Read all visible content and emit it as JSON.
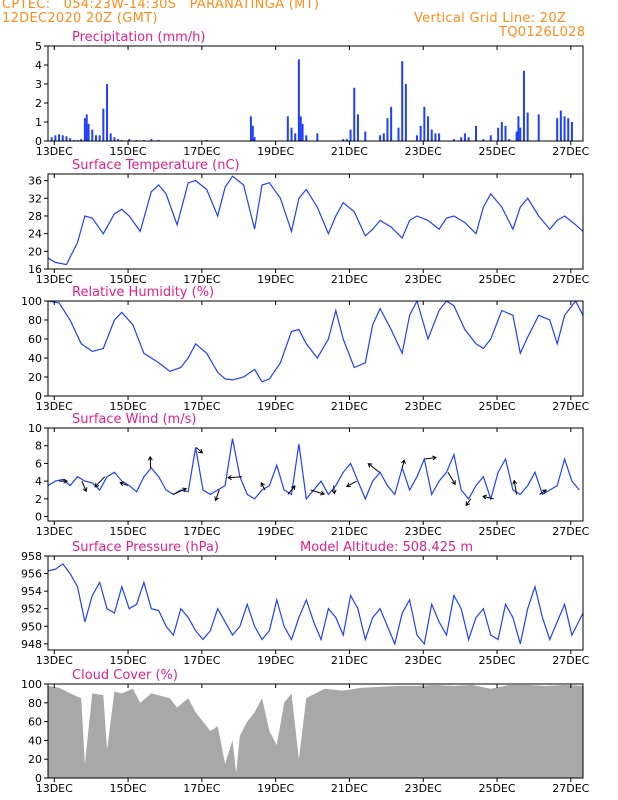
{
  "header": {
    "line1": "CPTEC:   054:23W-14:30S   PARANATINGA (MT)",
    "line2": "12DEC2020 20Z (GMT)",
    "right1": "Vertical Grid Line: 20Z",
    "right2": "TQ0126L028"
  },
  "colors": {
    "header": "#ff8c1a",
    "panel_title": "#e0208c",
    "series": "#2040ff",
    "cloud": "#a8a8a8"
  },
  "x_ticks": [
    "13DEC",
    "15DEC",
    "17DEC",
    "19DEC",
    "21DEC",
    "23DEC",
    "25DEC",
    "27DEC"
  ],
  "chart_data": [
    {
      "type": "bar",
      "title": "Precipitation (mm/h)",
      "ylim": [
        0,
        5
      ],
      "yticks": [
        "0",
        "1",
        "2",
        "3",
        "4",
        "5"
      ],
      "grid": false,
      "x_range_days": [
        0,
        14.5
      ],
      "series": [
        {
          "x": [
            0.1,
            0.2,
            0.3,
            0.4,
            0.5,
            0.6,
            0.7,
            0.8,
            0.9,
            1.0,
            1.05,
            1.1,
            1.2,
            1.3,
            1.4,
            1.5,
            1.6,
            1.7,
            1.8,
            1.9,
            2.0,
            2.2,
            2.4,
            2.6,
            2.8,
            3.0,
            4.3,
            5.5,
            5.55,
            5.6,
            6.5,
            6.6,
            6.7,
            6.8,
            6.85,
            6.9,
            7.0,
            7.3,
            8.0,
            8.1,
            8.2,
            8.3,
            8.4,
            8.6,
            9.0,
            9.1,
            9.2,
            9.3,
            9.5,
            9.6,
            9.7,
            10.0,
            10.1,
            10.2,
            10.3,
            10.4,
            10.5,
            10.6,
            11.0,
            11.2,
            11.3,
            11.4,
            11.6,
            11.8,
            12.0,
            12.2,
            12.3,
            12.4,
            12.5,
            12.7,
            12.75,
            12.8,
            12.9,
            13.0,
            13.3,
            13.8,
            13.9,
            14.0,
            14.1,
            14.2
          ],
          "values": [
            0.2,
            0.3,
            0.35,
            0.3,
            0.25,
            0.15,
            0.05,
            0.05,
            0.1,
            1.2,
            1.4,
            0.9,
            0.6,
            0.3,
            0.3,
            1.7,
            3.0,
            0.4,
            0.2,
            0.1,
            0.05,
            0.1,
            0.05,
            0.05,
            0.1,
            0.05,
            0.05,
            1.3,
            0.8,
            0.2,
            1.3,
            0.7,
            0.4,
            4.3,
            1.3,
            0.9,
            0.3,
            0.4,
            0.1,
            0.1,
            0.6,
            2.8,
            1.4,
            0.5,
            0.3,
            0.4,
            1.2,
            1.8,
            0.7,
            4.2,
            3.0,
            0.3,
            0.8,
            1.8,
            1.3,
            0.6,
            0.4,
            0.4,
            0.1,
            0.2,
            0.4,
            0.2,
            0.8,
            0.1,
            0.3,
            0.7,
            1.0,
            0.8,
            0.1,
            0.5,
            1.3,
            0.7,
            3.7,
            1.5,
            1.4,
            1.2,
            1.6,
            1.3,
            1.2,
            1.0
          ]
        }
      ]
    },
    {
      "type": "line",
      "title": "Surface Temperature (nC)",
      "ylim": [
        16,
        37.5
      ],
      "yticks": [
        "16",
        "20",
        "24",
        "28",
        "32",
        "36"
      ],
      "grid": false,
      "x_range_days": [
        0,
        14.5
      ],
      "series": [
        {
          "x": [
            0.0,
            0.2,
            0.5,
            0.8,
            1.0,
            1.2,
            1.5,
            1.8,
            2.0,
            2.2,
            2.5,
            2.8,
            3.0,
            3.2,
            3.5,
            3.8,
            4.0,
            4.3,
            4.6,
            4.8,
            5.0,
            5.3,
            5.6,
            5.8,
            6.0,
            6.3,
            6.6,
            6.8,
            7.0,
            7.3,
            7.6,
            7.8,
            8.0,
            8.3,
            8.6,
            8.8,
            9.0,
            9.3,
            9.6,
            9.8,
            10.0,
            10.3,
            10.6,
            10.8,
            11.0,
            11.3,
            11.6,
            11.8,
            12.0,
            12.3,
            12.6,
            12.8,
            13.0,
            13.3,
            13.6,
            13.8,
            14.0,
            14.3,
            14.5
          ],
          "values": [
            18.5,
            17.5,
            17.0,
            22.0,
            28.0,
            27.5,
            24.0,
            28.5,
            29.5,
            28.0,
            24.5,
            33.5,
            35.0,
            33.0,
            26.0,
            35.5,
            36.0,
            34.0,
            28.0,
            34.5,
            37.0,
            35.0,
            25.0,
            35.0,
            35.5,
            32.0,
            24.5,
            32.0,
            34.0,
            30.0,
            24.0,
            28.0,
            31.0,
            29.0,
            23.5,
            25.0,
            27.0,
            25.5,
            23.0,
            27.0,
            28.0,
            27.0,
            25.0,
            27.5,
            28.0,
            26.5,
            24.0,
            30.0,
            33.0,
            30.0,
            25.0,
            30.0,
            32.0,
            28.0,
            25.0,
            27.0,
            28.0,
            26.0,
            24.5
          ]
        }
      ]
    },
    {
      "type": "line",
      "title": "Relative Humidity (%)",
      "ylim": [
        0,
        100
      ],
      "yticks": [
        "0",
        "20",
        "40",
        "60",
        "80",
        "100"
      ],
      "grid": false,
      "x_range_days": [
        0,
        14.5
      ],
      "series": [
        {
          "x": [
            0.0,
            0.3,
            0.6,
            0.9,
            1.2,
            1.5,
            1.8,
            2.0,
            2.3,
            2.6,
            2.8,
            3.0,
            3.3,
            3.6,
            3.8,
            4.0,
            4.3,
            4.6,
            4.8,
            5.0,
            5.3,
            5.6,
            5.8,
            6.0,
            6.3,
            6.6,
            6.8,
            7.0,
            7.3,
            7.6,
            7.8,
            8.0,
            8.3,
            8.6,
            8.8,
            9.0,
            9.3,
            9.6,
            9.8,
            10.0,
            10.3,
            10.6,
            10.8,
            11.0,
            11.3,
            11.6,
            11.8,
            12.0,
            12.3,
            12.6,
            12.8,
            13.0,
            13.3,
            13.6,
            13.8,
            14.0,
            14.3,
            14.5
          ],
          "values": [
            100,
            98,
            80,
            55,
            47,
            50,
            80,
            88,
            75,
            45,
            40,
            35,
            26,
            30,
            40,
            55,
            45,
            25,
            18,
            17,
            20,
            28,
            15,
            18,
            35,
            68,
            70,
            55,
            40,
            60,
            90,
            60,
            30,
            35,
            75,
            92,
            70,
            45,
            85,
            100,
            60,
            90,
            100,
            95,
            70,
            55,
            50,
            60,
            90,
            85,
            45,
            62,
            85,
            80,
            55,
            85,
            100,
            85
          ]
        }
      ]
    },
    {
      "type": "line",
      "title": "Surface Wind (m/s)",
      "ylim": [
        -0.5,
        10
      ],
      "yticks": [
        "0",
        "2",
        "4",
        "6",
        "8",
        "10"
      ],
      "grid": false,
      "x_range_days": [
        0,
        14.5
      ],
      "series": [
        {
          "x": [
            0.0,
            0.2,
            0.4,
            0.6,
            0.8,
            1.0,
            1.2,
            1.4,
            1.6,
            1.8,
            2.0,
            2.2,
            2.4,
            2.6,
            2.8,
            3.0,
            3.2,
            3.4,
            3.6,
            3.8,
            4.0,
            4.2,
            4.4,
            4.6,
            4.8,
            5.0,
            5.2,
            5.4,
            5.6,
            5.8,
            6.0,
            6.2,
            6.4,
            6.6,
            6.8,
            7.0,
            7.2,
            7.4,
            7.6,
            7.8,
            8.0,
            8.2,
            8.4,
            8.6,
            8.8,
            9.0,
            9.2,
            9.4,
            9.6,
            9.8,
            10.0,
            10.2,
            10.4,
            10.6,
            10.8,
            11.0,
            11.2,
            11.4,
            11.6,
            11.8,
            12.0,
            12.2,
            12.4,
            12.6,
            12.8,
            13.0,
            13.2,
            13.4,
            13.6,
            13.8,
            14.0,
            14.2,
            14.4
          ],
          "values": [
            3.5,
            4.0,
            4.2,
            3.5,
            4.5,
            4.0,
            3.8,
            3.0,
            4.5,
            5.0,
            4.0,
            3.5,
            2.8,
            4.5,
            5.5,
            4.5,
            3.0,
            2.5,
            3.0,
            2.8,
            7.8,
            3.0,
            2.5,
            3.0,
            3.5,
            8.8,
            4.5,
            2.5,
            2.0,
            3.0,
            3.5,
            5.8,
            3.0,
            2.5,
            8.2,
            2.0,
            3.0,
            4.0,
            2.5,
            3.5,
            5.0,
            6.0,
            4.0,
            2.0,
            4.0,
            5.0,
            3.5,
            2.5,
            5.5,
            3.0,
            4.5,
            6.5,
            2.5,
            4.0,
            5.0,
            7.0,
            3.0,
            2.0,
            3.5,
            4.5,
            2.0,
            5.0,
            6.5,
            3.0,
            2.5,
            3.5,
            5.0,
            2.5,
            3.0,
            3.5,
            6.5,
            4.0,
            3.0
          ]
        }
      ]
    },
    {
      "type": "line",
      "title": "Surface Pressure (hPa)",
      "annotation": "Model Altitude: 508.425 m",
      "ylim": [
        947.3,
        958
      ],
      "yticks": [
        "948",
        "950",
        "952",
        "954",
        "956",
        "958"
      ],
      "grid": false,
      "x_range_days": [
        0,
        14.5
      ],
      "series": [
        {
          "x": [
            0.0,
            0.2,
            0.4,
            0.6,
            0.8,
            1.0,
            1.2,
            1.4,
            1.6,
            1.8,
            2.0,
            2.2,
            2.4,
            2.6,
            2.8,
            3.0,
            3.2,
            3.4,
            3.6,
            3.8,
            4.0,
            4.2,
            4.4,
            4.6,
            4.8,
            5.0,
            5.2,
            5.4,
            5.6,
            5.8,
            6.0,
            6.2,
            6.4,
            6.6,
            6.8,
            7.0,
            7.2,
            7.4,
            7.6,
            7.8,
            8.0,
            8.2,
            8.4,
            8.6,
            8.8,
            9.0,
            9.2,
            9.4,
            9.6,
            9.8,
            10.0,
            10.2,
            10.4,
            10.6,
            10.8,
            11.0,
            11.2,
            11.4,
            11.6,
            11.8,
            12.0,
            12.2,
            12.4,
            12.6,
            12.8,
            13.0,
            13.2,
            13.4,
            13.6,
            13.8,
            14.0,
            14.2,
            14.5
          ],
          "values": [
            956.3,
            956.5,
            957.1,
            956.0,
            954.5,
            950.5,
            953.5,
            955.0,
            952.0,
            951.5,
            954.5,
            952.0,
            952.5,
            955.0,
            952.0,
            951.8,
            950.0,
            949.0,
            952.0,
            951.0,
            949.5,
            948.5,
            949.5,
            952.0,
            950.5,
            949.0,
            950.0,
            952.5,
            950.0,
            948.5,
            949.5,
            953.0,
            950.0,
            948.5,
            951.0,
            953.0,
            950.5,
            948.5,
            952.0,
            951.0,
            949.0,
            953.5,
            952.0,
            948.5,
            951.0,
            952.0,
            950.0,
            948.0,
            951.5,
            953.0,
            949.0,
            948.0,
            952.5,
            950.5,
            949.0,
            953.5,
            952.0,
            948.5,
            951.0,
            952.0,
            949.0,
            948.5,
            952.5,
            951.0,
            948.0,
            952.0,
            954.5,
            951.0,
            948.5,
            950.5,
            952.5,
            949.0,
            951.5
          ]
        }
      ]
    },
    {
      "type": "area",
      "title": "Cloud Cover (%)",
      "ylim": [
        0,
        100
      ],
      "yticks": [
        "0",
        "20",
        "40",
        "60",
        "80",
        "100"
      ],
      "grid": false,
      "x_range_days": [
        0,
        14.5
      ],
      "series": [
        {
          "x": [
            0.0,
            0.3,
            0.6,
            0.9,
            1.0,
            1.2,
            1.5,
            1.6,
            1.8,
            2.0,
            2.3,
            2.5,
            2.8,
            3.0,
            3.3,
            3.5,
            3.8,
            4.0,
            4.2,
            4.4,
            4.6,
            4.8,
            5.0,
            5.1,
            5.2,
            5.4,
            5.6,
            5.8,
            6.0,
            6.2,
            6.4,
            6.6,
            6.8,
            7.0,
            7.5,
            8.0,
            8.5,
            9.0,
            9.5,
            10.0,
            10.5,
            11.0,
            11.5,
            12.0,
            12.5,
            13.0,
            13.5,
            14.0,
            14.5
          ],
          "values": [
            98,
            96,
            90,
            85,
            15,
            90,
            88,
            30,
            92,
            90,
            95,
            80,
            90,
            88,
            85,
            75,
            85,
            70,
            60,
            50,
            55,
            15,
            40,
            5,
            45,
            60,
            70,
            85,
            50,
            35,
            80,
            90,
            20,
            85,
            95,
            93,
            96,
            97,
            98,
            98,
            99,
            98,
            99,
            95,
            99,
            99,
            98,
            99,
            98
          ]
        }
      ]
    }
  ]
}
